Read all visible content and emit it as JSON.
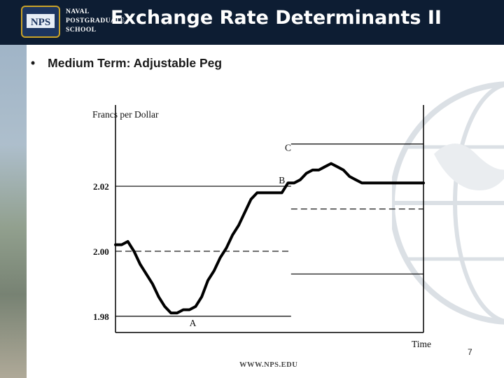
{
  "logo": {
    "badge": "NPS",
    "line1": "NAVAL",
    "line2": "POSTGRADUATE",
    "line3": "SCHOOL"
  },
  "slide": {
    "title": "Exchange Rate Determinants II",
    "bullet": "Medium Term: Adjustable Peg",
    "page_number": "7",
    "footer_url": "WWW.NPS.EDU"
  },
  "colors": {
    "header": "#0d1d33",
    "line": "#000000"
  },
  "chart_data": {
    "type": "line",
    "title": "",
    "ylabel": "Francs per Dollar",
    "xlabel": "Time",
    "ylim": [
      1.975,
      2.045
    ],
    "xlim": [
      0,
      100
    ],
    "yticks": [
      {
        "value": 2.02,
        "label": "2.02"
      },
      {
        "value": 2.0,
        "label": "2.00"
      },
      {
        "value": 1.98,
        "label": "1.98"
      }
    ],
    "series": [
      {
        "x": [
          0,
          2,
          4,
          6,
          8,
          10,
          12,
          14,
          16,
          18,
          20,
          22,
          24,
          26,
          28,
          30,
          32,
          34,
          36,
          38,
          40,
          42,
          44,
          46,
          48,
          50,
          52,
          54,
          56,
          58,
          60,
          62,
          64,
          66,
          68,
          70,
          72,
          74,
          76,
          78,
          80,
          82,
          84,
          86,
          88,
          90,
          92,
          94,
          96,
          98,
          100
        ],
        "values": [
          2.002,
          2.002,
          2.003,
          2.0,
          1.996,
          1.993,
          1.99,
          1.986,
          1.983,
          1.981,
          1.981,
          1.982,
          1.982,
          1.983,
          1.986,
          1.991,
          1.994,
          1.998,
          2.001,
          2.005,
          2.008,
          2.012,
          2.016,
          2.018,
          2.018,
          2.018,
          2.018,
          2.018,
          2.021,
          2.021,
          2.022,
          2.024,
          2.025,
          2.025,
          2.026,
          2.027,
          2.026,
          2.025,
          2.023,
          2.022,
          2.021,
          2.021,
          2.021,
          2.021,
          2.021,
          2.021,
          2.021,
          2.021,
          2.021,
          2.021,
          2.021
        ]
      }
    ],
    "reference_lines": [
      {
        "label": "",
        "y": 2.02,
        "x_range": [
          0,
          57
        ],
        "style": "solid"
      },
      {
        "label": "",
        "y": 2.0,
        "x_range": [
          0,
          57
        ],
        "style": "dashed"
      },
      {
        "label": "",
        "y": 1.98,
        "x_range": [
          0,
          57
        ],
        "style": "solid"
      },
      {
        "label": "",
        "y": 2.033,
        "x_range": [
          57,
          100
        ],
        "style": "solid"
      },
      {
        "label": "",
        "y": 2.013,
        "x_range": [
          57,
          100
        ],
        "style": "dashed"
      },
      {
        "label": "",
        "y": 1.993,
        "x_range": [
          57,
          100
        ],
        "style": "solid"
      }
    ],
    "annotations": [
      {
        "label": "A",
        "x": 24,
        "y": 1.978
      },
      {
        "label": "B",
        "x": 53,
        "y": 2.022
      },
      {
        "label": "C",
        "x": 55,
        "y": 2.032
      }
    ],
    "grid": false
  }
}
